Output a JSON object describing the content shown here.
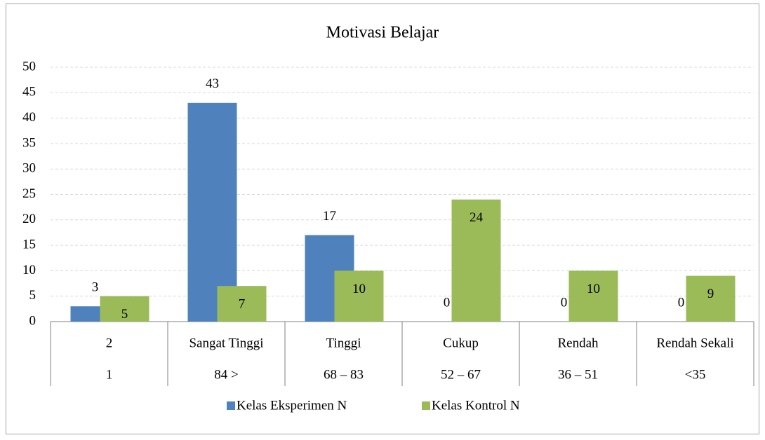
{
  "chart_data": {
    "type": "bar",
    "title": "Motivasi Belajar",
    "categories": [
      "2",
      "Sangat Tinggi",
      "Tinggi",
      "Cukup",
      "Rendah",
      "Rendah Sekali"
    ],
    "subcategories": [
      "1",
      "84 >",
      "68 – 83",
      "52 – 67",
      "36 – 51",
      "<35"
    ],
    "series": [
      {
        "name": "Kelas Eksperimen N",
        "color": "#4f81bd",
        "values": [
          3,
          43,
          17,
          0,
          0,
          0
        ]
      },
      {
        "name": "Kelas Kontrol N",
        "color": "#9bbb59",
        "values": [
          5,
          7,
          10,
          24,
          10,
          9
        ]
      }
    ],
    "ylim": [
      0,
      50
    ],
    "yticks": [
      0,
      5,
      10,
      15,
      20,
      25,
      30,
      35,
      40,
      45,
      50
    ],
    "grid": true,
    "legend": "bottom"
  }
}
